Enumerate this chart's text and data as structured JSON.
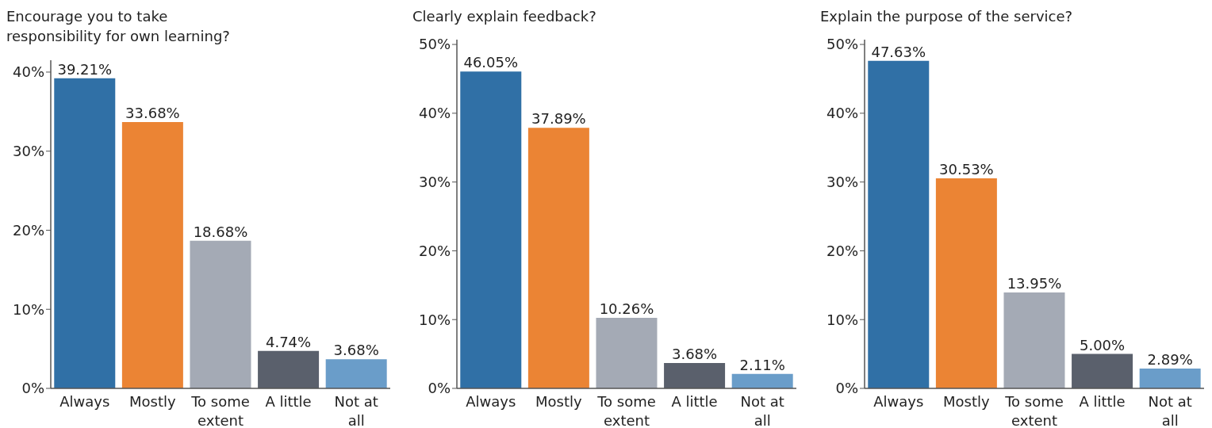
{
  "chart_data": [
    {
      "type": "bar",
      "title": "Encourage you to take responsibility for own learning?",
      "categories": [
        "Always",
        "Mostly",
        "To some extent",
        "A little",
        "Not at all"
      ],
      "values": [
        39.21,
        33.68,
        18.68,
        4.74,
        3.68
      ],
      "colors": [
        "#3070a6",
        "#eb8434",
        "#a4aab5",
        "#5a606c",
        "#6a9dc9"
      ],
      "value_labels": [
        "39.21%",
        "33.68%",
        "18.68%",
        "4.74%",
        "3.68%"
      ],
      "ylim": [
        0,
        41.5
      ],
      "yticks": [
        {
          "value": 0,
          "label": "0%"
        },
        {
          "value": 10,
          "label": "10%"
        },
        {
          "value": 20,
          "label": "20%"
        },
        {
          "value": 30,
          "label": "30%"
        },
        {
          "value": 40,
          "label": "40%"
        }
      ]
    },
    {
      "type": "bar",
      "title": "Clearly explain feedback?",
      "categories": [
        "Always",
        "Mostly",
        "To some extent",
        "A little",
        "Not at all"
      ],
      "values": [
        46.05,
        37.89,
        10.26,
        3.68,
        2.11
      ],
      "colors": [
        "#3070a6",
        "#eb8434",
        "#a4aab5",
        "#5a606c",
        "#6a9dc9"
      ],
      "value_labels": [
        "46.05%",
        "37.89%",
        "10.26%",
        "3.68%",
        "2.11%"
      ],
      "ylim": [
        0,
        50.7
      ],
      "yticks": [
        {
          "value": 0,
          "label": "0%"
        },
        {
          "value": 10,
          "label": "10%"
        },
        {
          "value": 20,
          "label": "20%"
        },
        {
          "value": 30,
          "label": "30%"
        },
        {
          "value": 40,
          "label": "40%"
        },
        {
          "value": 50,
          "label": "50%"
        }
      ]
    },
    {
      "type": "bar",
      "title": "Explain the purpose of the service?",
      "categories": [
        "Always",
        "Mostly",
        "To some extent",
        "A little",
        "Not at all"
      ],
      "values": [
        47.63,
        30.53,
        13.95,
        5.0,
        2.89
      ],
      "colors": [
        "#3070a6",
        "#eb8434",
        "#a4aab5",
        "#5a606c",
        "#6a9dc9"
      ],
      "value_labels": [
        "47.63%",
        "30.53%",
        "13.95%",
        "5.00%",
        "2.89%"
      ],
      "ylim": [
        0,
        50.7
      ],
      "yticks": [
        {
          "value": 0,
          "label": "0%"
        },
        {
          "value": 10,
          "label": "10%"
        },
        {
          "value": 20,
          "label": "20%"
        },
        {
          "value": 30,
          "label": "30%"
        },
        {
          "value": 40,
          "label": "40%"
        },
        {
          "value": 50,
          "label": "50%"
        }
      ]
    }
  ]
}
